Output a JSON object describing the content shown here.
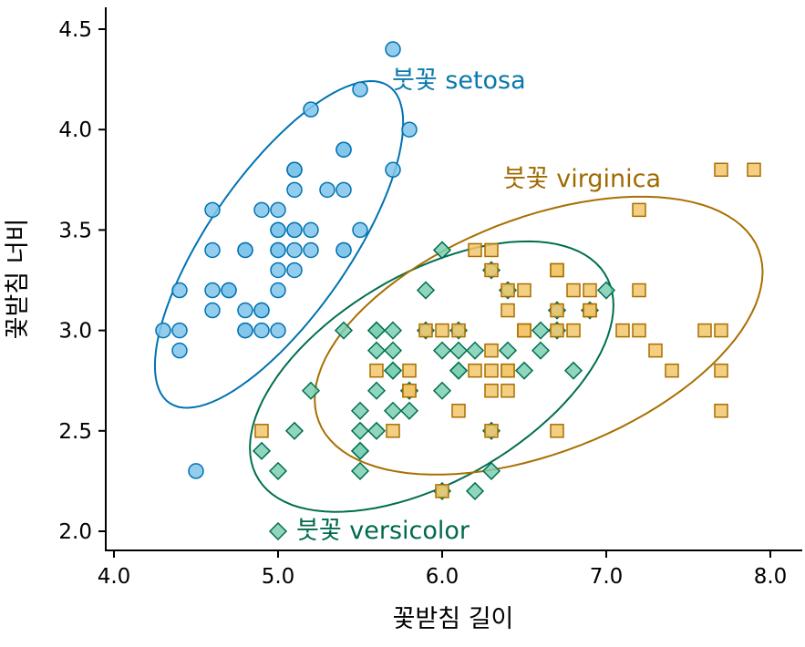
{
  "chart_data": {
    "type": "scatter",
    "title": "",
    "xlabel": "꽃받침 길이",
    "ylabel": "꽃받침 너비",
    "xlim": [
      3.99,
      8.2
    ],
    "ylim": [
      1.9,
      4.6
    ],
    "xticks": [
      "4.0",
      "5.0",
      "6.0",
      "7.0",
      "8.0"
    ],
    "yticks": [
      "2.0",
      "2.5",
      "3.0",
      "3.5",
      "4.0",
      "4.5"
    ],
    "grid": false,
    "legend": "direct labels",
    "ellipse_radius_sd": 2.146,
    "series": [
      {
        "name": "setosa",
        "label": "붓꽃 setosa",
        "marker": "circle",
        "fill": "#7fc4ea",
        "stroke": "#0072B2",
        "label_color": "#0a78ad",
        "x": [
          5.1,
          4.9,
          4.7,
          4.6,
          5.0,
          5.4,
          4.6,
          5.0,
          4.4,
          4.9,
          5.4,
          4.8,
          4.8,
          4.3,
          5.8,
          5.7,
          5.4,
          5.1,
          5.7,
          5.1,
          5.4,
          5.1,
          4.6,
          5.1,
          4.8,
          5.0,
          5.0,
          5.2,
          5.2,
          4.7,
          4.8,
          5.4,
          5.2,
          5.5,
          4.9,
          5.0,
          5.5,
          4.9,
          4.4,
          5.1,
          5.0,
          4.5,
          4.4,
          5.0,
          5.1,
          4.8,
          5.1,
          4.6,
          5.3,
          5.0
        ],
        "y": [
          3.5,
          3.0,
          3.2,
          3.1,
          3.6,
          3.9,
          3.4,
          3.4,
          2.9,
          3.1,
          3.7,
          3.4,
          3.0,
          3.0,
          4.0,
          4.4,
          3.9,
          3.5,
          3.8,
          3.8,
          3.4,
          3.7,
          3.6,
          3.3,
          3.4,
          3.0,
          3.4,
          3.5,
          3.4,
          3.2,
          3.1,
          3.4,
          4.1,
          4.2,
          3.1,
          3.2,
          3.5,
          3.6,
          3.0,
          3.4,
          3.5,
          2.3,
          3.2,
          3.5,
          3.8,
          3.0,
          3.8,
          3.2,
          3.7,
          3.3
        ]
      },
      {
        "name": "versicolor",
        "label": "붓꽃 versicolor",
        "marker": "diamond",
        "fill": "#7ccfb3",
        "stroke": "#006e4f",
        "label_color": "#006a4e",
        "x": [
          7.0,
          6.4,
          6.9,
          5.5,
          6.5,
          5.7,
          6.3,
          4.9,
          6.6,
          5.2,
          5.0,
          5.9,
          6.0,
          6.1,
          5.6,
          6.7,
          5.6,
          5.8,
          6.2,
          5.6,
          5.9,
          6.1,
          6.3,
          6.1,
          6.4,
          6.6,
          6.8,
          6.7,
          6.0,
          5.7,
          5.5,
          5.5,
          5.8,
          6.0,
          5.4,
          6.0,
          6.7,
          6.3,
          5.6,
          5.5,
          5.5,
          6.1,
          5.8,
          5.0,
          5.6,
          5.7,
          5.7,
          6.2,
          5.1,
          5.7
        ],
        "y": [
          3.2,
          3.2,
          3.1,
          2.3,
          2.8,
          2.8,
          3.3,
          2.4,
          2.9,
          2.7,
          2.0,
          3.0,
          2.2,
          2.9,
          2.9,
          3.1,
          3.0,
          2.7,
          2.2,
          2.5,
          3.2,
          2.8,
          2.5,
          2.8,
          2.9,
          3.0,
          2.8,
          3.0,
          2.9,
          2.6,
          2.4,
          2.4,
          2.7,
          2.7,
          3.0,
          3.4,
          3.1,
          2.3,
          3.0,
          2.5,
          2.6,
          3.0,
          2.6,
          2.3,
          2.7,
          3.0,
          2.9,
          2.9,
          2.5,
          2.8
        ]
      },
      {
        "name": "virginica",
        "label": "붓꽃 virginica",
        "marker": "square",
        "fill": "#f2c56b",
        "stroke": "#a86f00",
        "label_color": "#a06a00",
        "x": [
          6.3,
          5.8,
          7.1,
          6.3,
          6.5,
          7.6,
          4.9,
          7.3,
          6.7,
          7.2,
          6.5,
          6.4,
          6.8,
          5.7,
          5.8,
          6.4,
          6.5,
          7.7,
          7.7,
          6.0,
          6.9,
          5.6,
          7.7,
          6.3,
          6.7,
          7.2,
          6.2,
          6.1,
          6.4,
          7.2,
          7.4,
          7.9,
          6.4,
          6.3,
          6.1,
          7.7,
          6.3,
          6.4,
          6.0,
          6.9,
          6.7,
          6.9,
          5.8,
          6.8,
          6.7,
          6.7,
          6.3,
          6.5,
          6.2,
          5.9
        ],
        "y": [
          3.3,
          2.7,
          3.0,
          2.9,
          3.0,
          3.0,
          2.5,
          2.9,
          2.5,
          3.6,
          3.2,
          2.7,
          3.0,
          2.5,
          2.8,
          3.2,
          3.0,
          3.8,
          2.6,
          2.2,
          3.2,
          2.8,
          2.8,
          2.7,
          3.3,
          3.2,
          2.8,
          3.0,
          2.8,
          3.0,
          2.8,
          3.8,
          2.8,
          2.8,
          2.6,
          3.0,
          3.4,
          3.1,
          3.0,
          3.1,
          3.1,
          3.1,
          2.7,
          3.2,
          3.3,
          3.0,
          2.5,
          3.0,
          3.4,
          3.0
        ]
      }
    ]
  }
}
